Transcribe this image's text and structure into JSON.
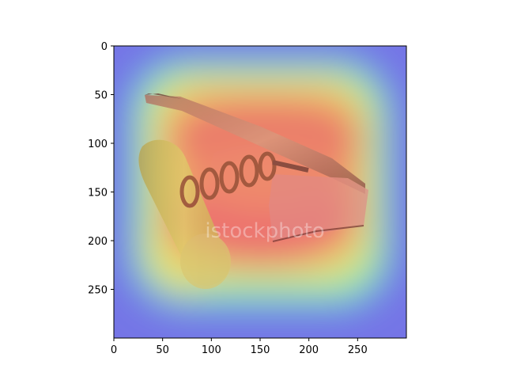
{
  "chart_data": {
    "type": "heatmap",
    "description_free": true,
    "image_size": [
      300,
      300
    ],
    "xlim": [
      0,
      300
    ],
    "ylim": [
      300,
      0
    ],
    "x_ticks": [
      0,
      50,
      100,
      150,
      200,
      250
    ],
    "y_ticks": [
      0,
      50,
      100,
      150,
      200,
      250
    ],
    "colormap": "jet",
    "overlay_alpha": 0.5,
    "grid": false,
    "watermark_text": "istockphoto",
    "heat_peak_regions": [
      {
        "cx": 155,
        "cy": 95,
        "rx": 110,
        "ry": 45,
        "intensity": 1.0
      },
      {
        "cx": 150,
        "cy": 180,
        "rx": 120,
        "ry": 55,
        "intensity": 0.95
      },
      {
        "cx": 60,
        "cy": 190,
        "rx": 45,
        "ry": 70,
        "intensity": 0.75
      }
    ]
  }
}
